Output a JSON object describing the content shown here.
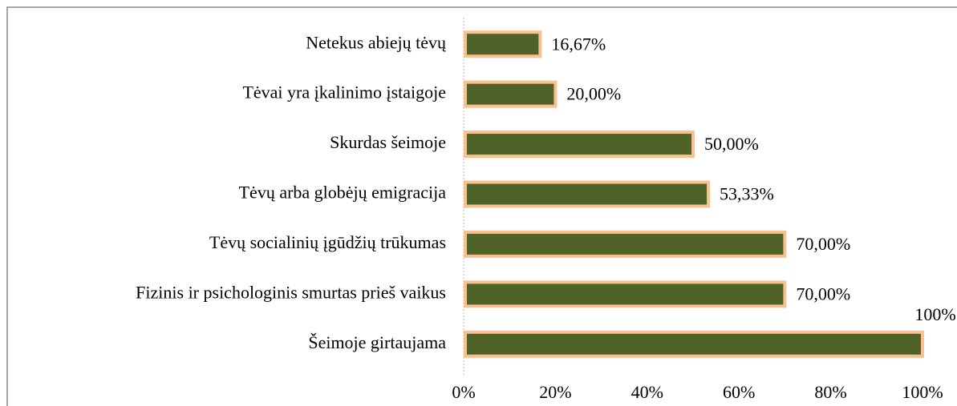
{
  "chart_data": {
    "type": "barh",
    "categories": [
      "Netekus abiejų tėvų",
      "Tėvai yra įkalinimo įstaigoje",
      "Skurdas šeimoje",
      "Tėvų arba globėjų emigracija",
      "Tėvų socialinių įgūdžių trūkumas",
      "Fizinis ir psichologinis smurtas prieš vaikus",
      "Šeimoje girtaujama"
    ],
    "values": [
      16.67,
      20,
      50,
      53.33,
      70,
      70,
      100
    ],
    "value_labels": [
      "16,67%",
      "20,00%",
      "50,00%",
      "53,33%",
      "70,00%",
      "70,00%",
      "100%"
    ],
    "color": "#4f6228",
    "edge_color": "#fac090",
    "xlim": [
      0,
      100
    ],
    "xticks": [
      {
        "value": 0,
        "label": "0%"
      },
      {
        "value": 20,
        "label": "20%"
      },
      {
        "value": 40,
        "label": "40%"
      },
      {
        "value": 60,
        "label": "60%"
      },
      {
        "value": 80,
        "label": "80%"
      },
      {
        "value": 100,
        "label": "100%"
      }
    ]
  }
}
